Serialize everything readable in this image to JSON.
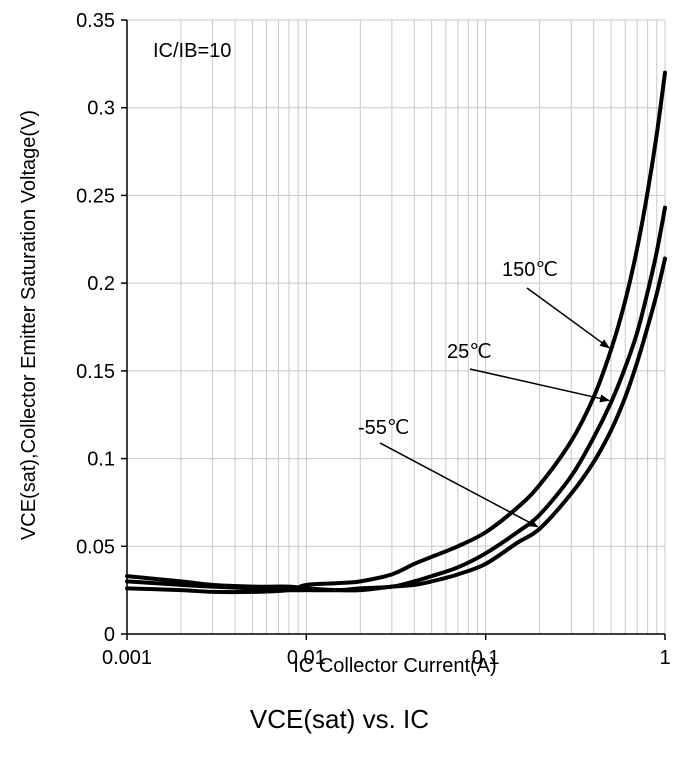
{
  "chart_data": {
    "type": "line",
    "title": "VCE(sat) vs. IC",
    "xlabel": "IC Collector Current(A)",
    "ylabel": "VCE(sat),Collector Emitter Saturation Voltage(V)",
    "xscale": "log",
    "xlim": [
      0.001,
      1
    ],
    "ylim": [
      0,
      0.35
    ],
    "x_ticks": [
      "0.001",
      "0.01",
      "0.1",
      "1"
    ],
    "y_ticks": [
      "0",
      "0.05",
      "0.1",
      "0.15",
      "0.2",
      "0.25",
      "0.3",
      "0.35"
    ],
    "grid": true,
    "condition": "IC/IB=10",
    "series": [
      {
        "name": "150℃",
        "x": [
          0.001,
          0.002,
          0.003,
          0.005,
          0.008,
          0.01,
          0.015,
          0.02,
          0.03,
          0.04,
          0.05,
          0.07,
          0.1,
          0.15,
          0.2,
          0.3,
          0.4,
          0.5,
          0.6,
          0.7,
          0.8,
          0.9,
          1.0
        ],
        "values": [
          0.026,
          0.025,
          0.024,
          0.024,
          0.025,
          0.028,
          0.029,
          0.03,
          0.034,
          0.04,
          0.044,
          0.05,
          0.058,
          0.072,
          0.085,
          0.11,
          0.135,
          0.162,
          0.19,
          0.22,
          0.252,
          0.285,
          0.32
        ]
      },
      {
        "name": "25℃",
        "x": [
          0.001,
          0.002,
          0.003,
          0.005,
          0.008,
          0.01,
          0.015,
          0.02,
          0.03,
          0.04,
          0.05,
          0.07,
          0.1,
          0.15,
          0.2,
          0.3,
          0.4,
          0.5,
          0.6,
          0.7,
          0.8,
          0.9,
          1.0
        ],
        "values": [
          0.03,
          0.028,
          0.027,
          0.026,
          0.025,
          0.025,
          0.025,
          0.026,
          0.027,
          0.03,
          0.033,
          0.038,
          0.046,
          0.058,
          0.068,
          0.09,
          0.112,
          0.132,
          0.152,
          0.172,
          0.195,
          0.218,
          0.243
        ]
      },
      {
        "name": "-55℃",
        "x": [
          0.001,
          0.002,
          0.003,
          0.005,
          0.008,
          0.01,
          0.015,
          0.02,
          0.03,
          0.04,
          0.05,
          0.07,
          0.1,
          0.15,
          0.2,
          0.3,
          0.4,
          0.5,
          0.6,
          0.7,
          0.8,
          0.9,
          1.0
        ],
        "values": [
          0.033,
          0.03,
          0.028,
          0.027,
          0.027,
          0.026,
          0.025,
          0.025,
          0.027,
          0.028,
          0.03,
          0.034,
          0.04,
          0.052,
          0.06,
          0.08,
          0.098,
          0.116,
          0.135,
          0.155,
          0.175,
          0.194,
          0.214
        ]
      }
    ],
    "annotations": [
      {
        "text": "IC/IB=10"
      },
      {
        "text": "150℃",
        "points_to": "150℃",
        "at_x": 0.5
      },
      {
        "text": "25℃",
        "points_to": "25℃",
        "at_x": 0.5
      },
      {
        "text": "-55℃",
        "points_to": "-55℃",
        "at_x": 0.2
      }
    ],
    "line_color": "#000000",
    "grid_color": "#c8c8c8"
  }
}
